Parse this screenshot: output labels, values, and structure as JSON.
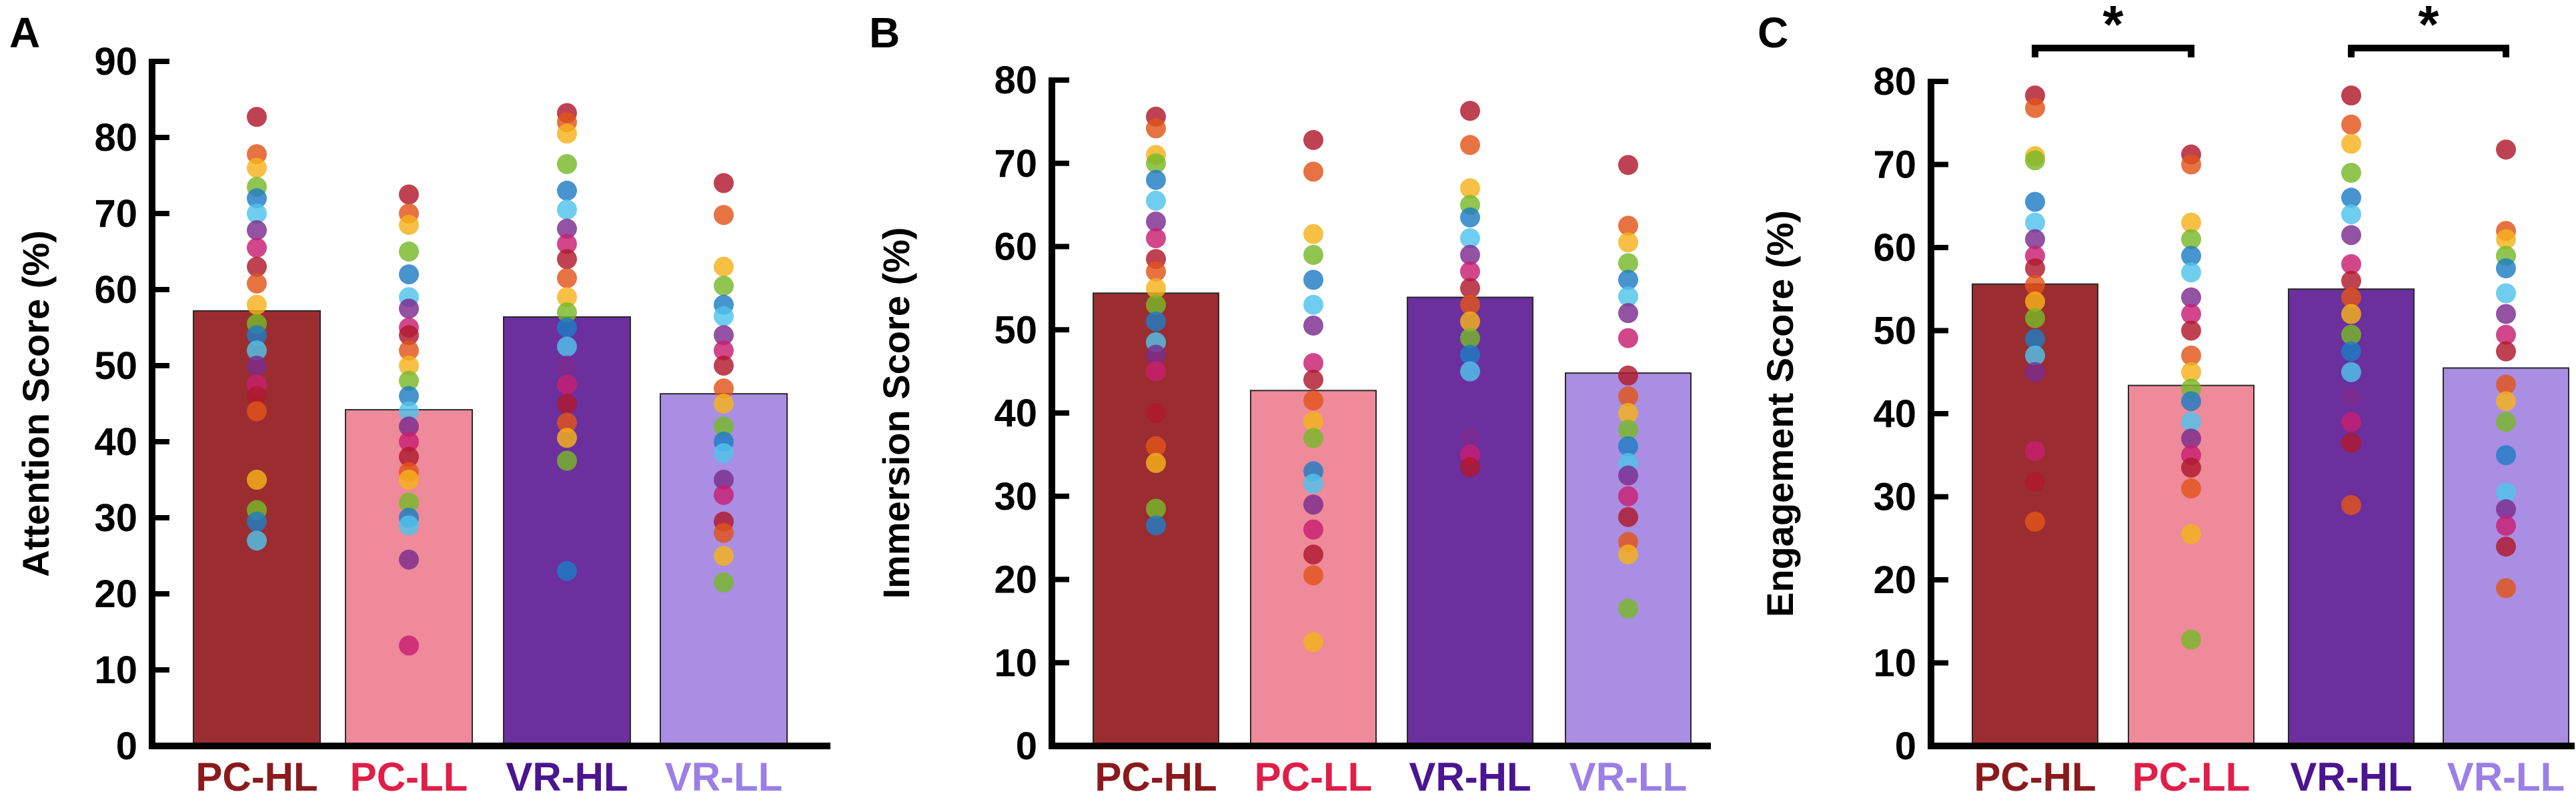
{
  "colors": {
    "PC-HL": "#9b2d30",
    "PC-LL": "#ee8a99",
    "VR-HL": "#6b2f9e",
    "VR-LL": "#a98ee3",
    "label_PC-HL": "#8a1a1c",
    "label_PC-LL": "#e01e47",
    "label_VR-HL": "#4b1490",
    "label_VR-LL": "#9b7fe6",
    "dots": [
      "#b0182c",
      "#e2541a",
      "#f5b21b",
      "#77b82a",
      "#1f7dc4",
      "#4fc3ec",
      "#7b2c8e",
      "#c81f72"
    ]
  },
  "chart_data": [
    {
      "panel": "A",
      "type": "bar",
      "ylabel": "Attention Score (%)",
      "ylim": [
        0,
        90
      ],
      "yticks": [
        0,
        10,
        20,
        30,
        40,
        50,
        60,
        70,
        80,
        90
      ],
      "categories": [
        "PC-HL",
        "PC-LL",
        "VR-HL",
        "VR-LL"
      ],
      "values": [
        57.2,
        44.2,
        56.4,
        46.3
      ],
      "points": [
        [
          82.7,
          77.8,
          76.0,
          73.5,
          72.0,
          70.0,
          67.8,
          65.5,
          63.0,
          60.8,
          58.0,
          55.5,
          54.0,
          52.0,
          50.0,
          47.5,
          46.0,
          44.0,
          35.0,
          31.0,
          29.5,
          27.0
        ],
        [
          72.5,
          70.0,
          68.5,
          65.0,
          62.0,
          59.0,
          57.5,
          55.0,
          54.0,
          52.0,
          50.0,
          48.0,
          46.0,
          44.0,
          42.0,
          40.0,
          38.0,
          36.0,
          35.0,
          32.0,
          30.0,
          29.0,
          24.5,
          13.2
        ],
        [
          83.2,
          82.0,
          80.5,
          76.5,
          73.0,
          70.5,
          68.0,
          66.0,
          64.0,
          61.5,
          59.0,
          57.0,
          55.0,
          52.5,
          50.0,
          47.5,
          45.0,
          42.5,
          40.5,
          37.5,
          23.0
        ],
        [
          74.0,
          69.8,
          63.0,
          60.5,
          58.0,
          56.5,
          54.0,
          52.0,
          50.0,
          47.0,
          45.0,
          42.0,
          40.0,
          38.5,
          35.0,
          33.0,
          29.5,
          28.0,
          25.0,
          21.5
        ]
      ],
      "markers": []
    },
    {
      "panel": "B",
      "type": "bar",
      "ylabel": "Immersion Score (%)",
      "ylim": [
        0,
        80
      ],
      "yticks": [
        0,
        10,
        20,
        30,
        40,
        50,
        60,
        70,
        80
      ],
      "categories": [
        "PC-HL",
        "PC-LL",
        "VR-HL",
        "VR-LL"
      ],
      "values": [
        54.4,
        42.7,
        53.9,
        44.8
      ],
      "points": [
        [
          75.6,
          74.2,
          71.0,
          70.0,
          68.0,
          65.5,
          63.0,
          61.0,
          58.5,
          57.0,
          55.0,
          53.0,
          51.0,
          48.5,
          47.0,
          45.0,
          40.0,
          36.0,
          34.0,
          28.5,
          26.5
        ],
        [
          72.8,
          69.0,
          61.5,
          59.0,
          56.0,
          53.0,
          50.5,
          46.0,
          44.0,
          41.5,
          39.0,
          37.0,
          33.0,
          31.5,
          29.0,
          26.0,
          23.0,
          20.5,
          12.5
        ],
        [
          76.3,
          72.2,
          67.0,
          65.0,
          63.5,
          61.0,
          59.0,
          57.0,
          55.0,
          53.0,
          51.0,
          49.0,
          47.0,
          45.0,
          37.0,
          35.0,
          33.5
        ],
        [
          69.8,
          62.5,
          60.5,
          58.0,
          56.0,
          54.0,
          52.0,
          49.0,
          44.5,
          42.0,
          40.0,
          38.0,
          36.0,
          34.0,
          32.5,
          30.0,
          27.5,
          24.5,
          23.0,
          16.5
        ]
      ],
      "markers": []
    },
    {
      "panel": "C",
      "type": "bar",
      "ylabel": "Engagement Score (%)",
      "ylim": [
        0,
        80
      ],
      "yticks": [
        0,
        10,
        20,
        30,
        40,
        50,
        60,
        70,
        80
      ],
      "categories": [
        "PC-HL",
        "PC-LL",
        "VR-HL",
        "VR-LL"
      ],
      "values": [
        55.6,
        43.4,
        55.0,
        45.5
      ],
      "points": [
        [
          78.3,
          76.8,
          71.0,
          70.5,
          65.5,
          63.0,
          61.0,
          59.0,
          57.5,
          55.5,
          53.5,
          51.5,
          49.0,
          47.0,
          45.0,
          35.5,
          31.8,
          27.0
        ],
        [
          71.2,
          70.0,
          63.0,
          61.0,
          59.0,
          57.0,
          54.0,
          52.0,
          50.0,
          47.0,
          45.0,
          43.0,
          41.5,
          39.0,
          37.0,
          35.0,
          33.5,
          31.0,
          25.5,
          12.8
        ],
        [
          78.3,
          74.8,
          72.5,
          69.0,
          66.0,
          64.0,
          61.5,
          58.0,
          56.0,
          54.0,
          52.0,
          49.5,
          47.5,
          45.0,
          42.0,
          39.0,
          36.5,
          29.0
        ],
        [
          71.8,
          62.0,
          61.0,
          59.0,
          57.5,
          54.5,
          52.0,
          49.5,
          47.5,
          43.5,
          41.5,
          39.0,
          35.0,
          30.5,
          28.5,
          26.5,
          24.0,
          19.0
        ]
      ],
      "markers": [
        {
          "from": 0,
          "to": 1,
          "label": "*"
        },
        {
          "from": 2,
          "to": 3,
          "label": "*"
        }
      ]
    }
  ]
}
